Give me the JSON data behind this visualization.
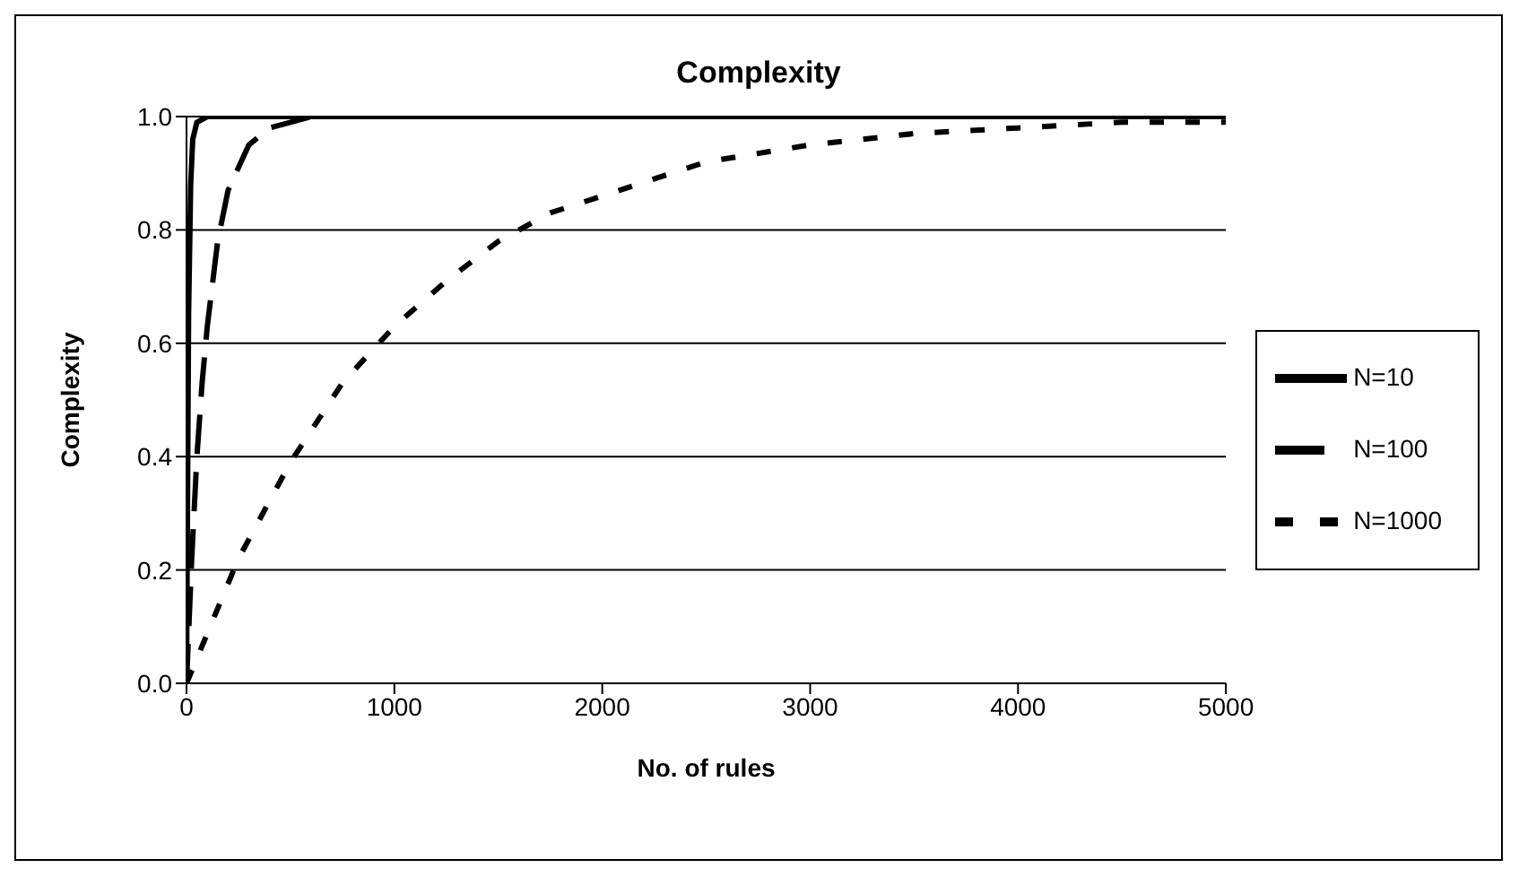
{
  "chart_data": {
    "type": "line",
    "title": "Complexity",
    "xlabel": "No. of rules",
    "ylabel": "Complexity",
    "xlim": [
      0,
      5000
    ],
    "xticks": [
      0,
      1000,
      2000,
      3000,
      4000,
      5000
    ],
    "ylim": [
      0,
      1
    ],
    "yticks": [
      {
        "value": 0,
        "label": "0.0"
      },
      {
        "value": 0.2,
        "label": "0.2"
      },
      {
        "value": 0.4,
        "label": "0.4"
      },
      {
        "value": 0.6,
        "label": "0.6"
      },
      {
        "value": 0.8,
        "label": "0.8"
      },
      {
        "value": 1,
        "label": "1.0"
      }
    ],
    "grid": "y",
    "legend": "right",
    "marker": "none",
    "series": [
      {
        "name": "N=10",
        "color": "#000000",
        "line_style": "solid",
        "x": [
          0,
          10,
          20,
          30,
          50,
          100,
          5000
        ],
        "values": [
          0,
          0.65,
          0.88,
          0.96,
          0.99,
          1,
          1
        ]
      },
      {
        "name": "N=100",
        "color": "#000000",
        "line_style": "dashed",
        "x": [
          0,
          25,
          50,
          75,
          100,
          150,
          200,
          300,
          400,
          500,
          600,
          5000
        ],
        "values": [
          0,
          0.22,
          0.4,
          0.53,
          0.63,
          0.78,
          0.87,
          0.95,
          0.98,
          0.99,
          1,
          1
        ]
      },
      {
        "name": "N=1000",
        "color": "#000000",
        "line_style": "dotted",
        "x": [
          0,
          250,
          500,
          750,
          1000,
          1250,
          1500,
          1750,
          2000,
          2500,
          3000,
          3500,
          4000,
          4500,
          5000
        ],
        "values": [
          0,
          0.22,
          0.39,
          0.53,
          0.63,
          0.71,
          0.78,
          0.83,
          0.86,
          0.92,
          0.95,
          0.97,
          0.98,
          0.99,
          0.99
        ]
      }
    ]
  }
}
